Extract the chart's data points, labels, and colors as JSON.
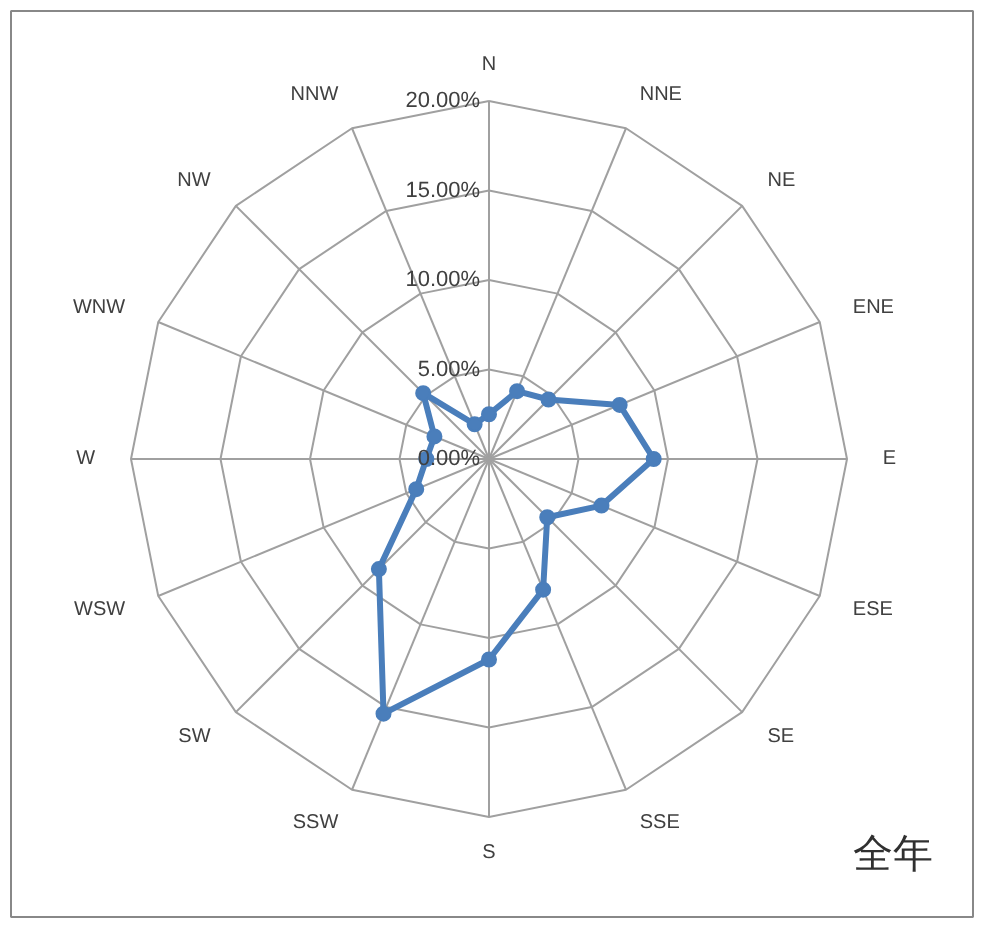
{
  "chart_data": {
    "type": "radar",
    "categories": [
      "N",
      "NNE",
      "NE",
      "ENE",
      "E",
      "ESE",
      "SE",
      "SSE",
      "S",
      "SSW",
      "SW",
      "WSW",
      "W",
      "WNW",
      "NW",
      "NNW"
    ],
    "series": [
      {
        "color": "#4a7ebb",
        "values": [
          2.5,
          4.1,
          4.7,
          7.9,
          9.2,
          6.8,
          4.6,
          7.9,
          11.2,
          15.4,
          8.7,
          4.4,
          3.5,
          3.3,
          5.2,
          2.1
        ]
      }
    ],
    "ylim": [
      0,
      20
    ],
    "yticks": [
      {
        "value": 0,
        "label": "0.00%"
      },
      {
        "value": 5,
        "label": "5.00%"
      },
      {
        "value": 10,
        "label": "10.00%"
      },
      {
        "value": 15,
        "label": "15.00%"
      },
      {
        "value": 20,
        "label": "20.00%"
      }
    ],
    "marker": "circle",
    "grid": true,
    "annotations": [
      "全年"
    ]
  }
}
